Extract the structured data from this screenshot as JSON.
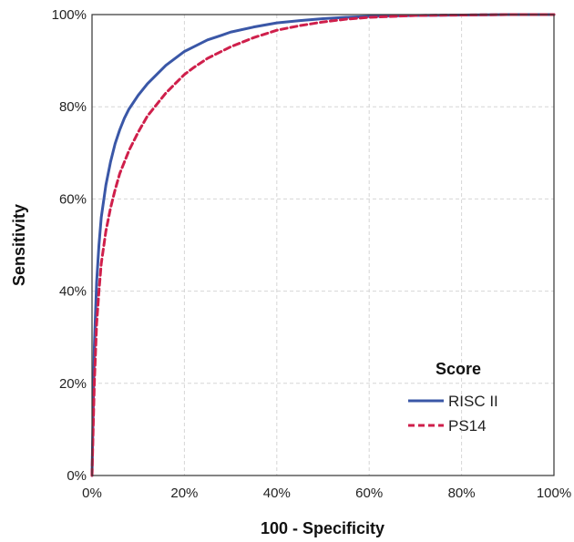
{
  "chart_data": {
    "type": "line",
    "title": "",
    "xlabel": "100 - Specificity",
    "ylabel": "Sensitivity",
    "xlim": [
      0,
      100
    ],
    "ylim": [
      0,
      100
    ],
    "x_ticks": [
      "0%",
      "20%",
      "40%",
      "60%",
      "80%",
      "100%"
    ],
    "y_ticks": [
      "0%",
      "20%",
      "40%",
      "60%",
      "80%",
      "100%"
    ],
    "grid": true,
    "legend": {
      "title": "Score",
      "position": "bottom-right"
    },
    "series": [
      {
        "name": "RISC II",
        "color": "#3a57a7",
        "style": "solid",
        "x": [
          0,
          0.5,
          1,
          1.5,
          2,
          3,
          4,
          5,
          6,
          7,
          8,
          10,
          12,
          14,
          16,
          18,
          20,
          22,
          25,
          28,
          30,
          35,
          40,
          45,
          50,
          55,
          60,
          70,
          80,
          90,
          100
        ],
        "y": [
          0,
          28,
          42,
          50,
          56,
          63,
          68,
          72,
          75,
          77.5,
          79.5,
          82.5,
          85,
          87,
          89,
          90.5,
          92,
          93,
          94.5,
          95.5,
          96.2,
          97.3,
          98.2,
          98.7,
          99.1,
          99.4,
          99.6,
          99.8,
          99.9,
          100,
          100
        ]
      },
      {
        "name": "PS14",
        "color": "#cf1f4b",
        "style": "dashed",
        "x": [
          0,
          0.5,
          1,
          1.5,
          2,
          3,
          4,
          5,
          6,
          7,
          8,
          10,
          12,
          14,
          16,
          18,
          20,
          22,
          25,
          28,
          30,
          35,
          40,
          45,
          50,
          55,
          60,
          70,
          80,
          90,
          100
        ],
        "y": [
          0,
          20,
          33,
          40,
          46,
          53,
          58,
          62,
          65.5,
          68,
          70.5,
          74.5,
          78,
          80.5,
          83,
          85,
          87,
          88.5,
          90.5,
          92,
          93,
          95,
          96.6,
          97.6,
          98.4,
          99,
          99.4,
          99.8,
          99.9,
          100,
          100
        ]
      }
    ]
  }
}
